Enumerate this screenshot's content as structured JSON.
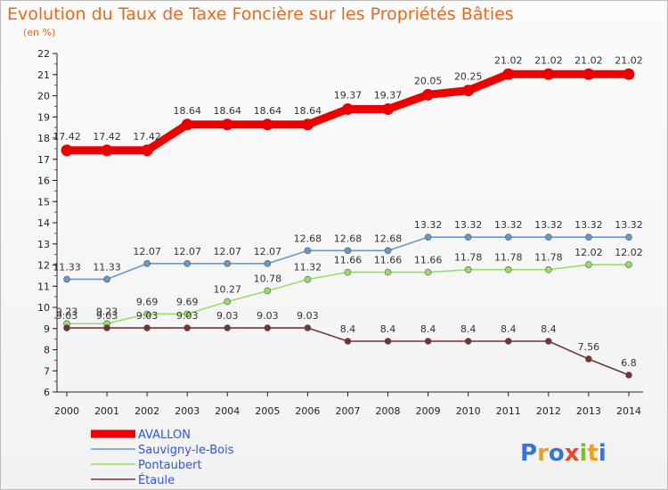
{
  "header": {
    "title": "Evolution du Taux de Taxe Foncière sur les Propriétés Bâties",
    "subtitle": "(en %)"
  },
  "logo": {
    "letters": [
      "P",
      "r",
      "o",
      "x",
      "i",
      "t",
      "i"
    ],
    "colors": [
      "#3a73d6",
      "#f0a020",
      "#3a73d6",
      "#e8452c",
      "#7fbf2a",
      "#f0a020",
      "#3a73d6"
    ]
  },
  "chart_data": {
    "type": "line",
    "x": [
      "2000",
      "2001",
      "2002",
      "2003",
      "2004",
      "2005",
      "2006",
      "2007",
      "2008",
      "2009",
      "2010",
      "2011",
      "2012",
      "2013",
      "2014"
    ],
    "ylim": [
      6,
      22
    ],
    "yticks": [
      "6",
      "7",
      "8",
      "9",
      "10",
      "11",
      "12",
      "13",
      "14",
      "15",
      "16",
      "17",
      "18",
      "19",
      "20",
      "21",
      "22"
    ],
    "grid": false,
    "legend_position": "bottom-left",
    "series": [
      {
        "name": "AVALLON",
        "color": "#ee0000",
        "values": [
          17.42,
          17.42,
          17.42,
          18.64,
          18.64,
          18.64,
          18.64,
          19.37,
          19.37,
          20.05,
          20.25,
          21.02,
          21.02,
          21.02,
          21.02
        ],
        "labels": [
          "17.42",
          "17.42",
          "17.42",
          "18.64",
          "18.64",
          "18.64",
          "18.64",
          "19.37",
          "19.37",
          "20.05",
          "20.25",
          "21.02",
          "21.02",
          "21.02",
          "21.02"
        ]
      },
      {
        "name": "Sauvigny-le-Bois",
        "color": "#6699cc",
        "values": [
          11.33,
          11.33,
          12.07,
          12.07,
          12.07,
          12.07,
          12.68,
          12.68,
          12.68,
          13.32,
          13.32,
          13.32,
          13.32,
          13.32,
          13.32
        ],
        "labels": [
          "11.33",
          "11.33",
          "12.07",
          "12.07",
          "12.07",
          "12.07",
          "12.68",
          "12.68",
          "12.68",
          "13.32",
          "13.32",
          "13.32",
          "13.32",
          "13.32",
          "13.32"
        ]
      },
      {
        "name": "Pontaubert",
        "color": "#99dd66",
        "values": [
          9.23,
          9.23,
          9.69,
          9.69,
          10.27,
          10.78,
          11.32,
          11.66,
          11.66,
          11.66,
          11.78,
          11.78,
          11.78,
          12.02,
          12.02
        ],
        "labels": [
          "9.23",
          "9.23",
          "9.69",
          "9.69",
          "10.27",
          "10.78",
          "11.32",
          "11.66",
          "11.66",
          "11.66",
          "11.78",
          "11.78",
          "11.78",
          "12.02",
          "12.02"
        ]
      },
      {
        "name": "Étaule",
        "color": "#773333",
        "values": [
          9.03,
          9.03,
          9.03,
          9.03,
          9.03,
          9.03,
          9.03,
          8.4,
          8.4,
          8.4,
          8.4,
          8.4,
          8.4,
          7.56,
          6.8
        ],
        "labels": [
          "9.03",
          "9.03",
          "9.03",
          "9.03",
          "9.03",
          "9.03",
          "9.03",
          "8.4",
          "8.4",
          "8.4",
          "8.4",
          "8.4",
          "8.4",
          "7.56",
          "6.8"
        ]
      }
    ]
  }
}
